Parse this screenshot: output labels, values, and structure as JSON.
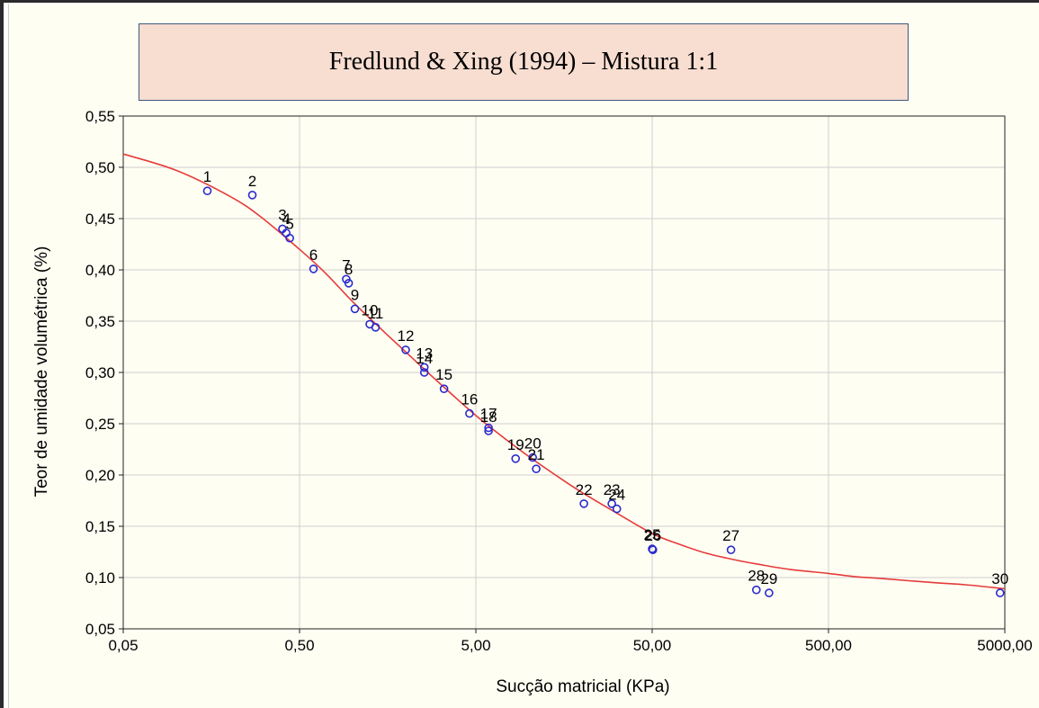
{
  "title": "Fredlund & Xing (1994) – Mistura 1:1",
  "chart_data": {
    "type": "scatter",
    "title": "Fredlund & Xing (1994) – Mistura 1:1",
    "xlabel": "Sucção matricial (KPa)",
    "ylabel": "Teor de umidade volumétrica (%)",
    "xscale": "log",
    "xlim": [
      0.05,
      5000
    ],
    "ylim": [
      0.05,
      0.55
    ],
    "xticks": [
      0.05,
      0.5,
      5,
      50,
      500,
      5000
    ],
    "xtick_labels": [
      "0,05",
      "0,50",
      "5,00",
      "50,00",
      "500,00",
      "5000,00"
    ],
    "yticks": [
      0.05,
      0.1,
      0.15,
      0.2,
      0.25,
      0.3,
      0.35,
      0.4,
      0.45,
      0.5,
      0.55
    ],
    "ytick_labels": [
      "0,05",
      "0,10",
      "0,15",
      "0,20",
      "0,25",
      "0,30",
      "0,35",
      "0,40",
      "0,45",
      "0,50",
      "0,55"
    ],
    "grid": true,
    "point_color": "#2a2ad0",
    "curve_color": "#e53b3b",
    "points": [
      {
        "label": "1",
        "x": 0.15,
        "y": 0.477
      },
      {
        "label": "2",
        "x": 0.27,
        "y": 0.473
      },
      {
        "label": "3",
        "x": 0.4,
        "y": 0.44
      },
      {
        "label": "4",
        "x": 0.42,
        "y": 0.436
      },
      {
        "label": "5",
        "x": 0.44,
        "y": 0.431
      },
      {
        "label": "6",
        "x": 0.6,
        "y": 0.401
      },
      {
        "label": "7",
        "x": 0.92,
        "y": 0.391
      },
      {
        "label": "8",
        "x": 0.95,
        "y": 0.387
      },
      {
        "label": "9",
        "x": 1.03,
        "y": 0.362
      },
      {
        "label": "10",
        "x": 1.25,
        "y": 0.347
      },
      {
        "label": "11",
        "x": 1.35,
        "y": 0.344
      },
      {
        "label": "12",
        "x": 2.0,
        "y": 0.322
      },
      {
        "label": "13",
        "x": 2.55,
        "y": 0.305
      },
      {
        "label": "14",
        "x": 2.55,
        "y": 0.3
      },
      {
        "label": "15",
        "x": 3.3,
        "y": 0.284
      },
      {
        "label": "16",
        "x": 4.6,
        "y": 0.26
      },
      {
        "label": "17",
        "x": 5.9,
        "y": 0.246
      },
      {
        "label": "18",
        "x": 5.9,
        "y": 0.243
      },
      {
        "label": "19",
        "x": 8.4,
        "y": 0.216
      },
      {
        "label": "20",
        "x": 10.5,
        "y": 0.217
      },
      {
        "label": "21",
        "x": 11.0,
        "y": 0.206
      },
      {
        "label": "22",
        "x": 20.5,
        "y": 0.172
      },
      {
        "label": "23",
        "x": 29.5,
        "y": 0.172
      },
      {
        "label": "24",
        "x": 31.5,
        "y": 0.167
      },
      {
        "label": "25",
        "x": 50.0,
        "y": 0.128
      },
      {
        "label": "26",
        "x": 50.5,
        "y": 0.127
      },
      {
        "label": "27",
        "x": 140,
        "y": 0.127
      },
      {
        "label": "28",
        "x": 195,
        "y": 0.088
      },
      {
        "label": "29",
        "x": 230,
        "y": 0.085
      },
      {
        "label": "30",
        "x": 4700,
        "y": 0.085
      }
    ],
    "fit_curve": {
      "name": "Fredlund & Xing (1994)",
      "x": [
        0.05,
        0.1,
        0.2,
        0.3,
        0.5,
        0.7,
        1,
        1.5,
        2,
        3,
        5,
        7,
        10,
        15,
        20,
        30,
        50,
        70,
        100,
        150,
        200,
        300,
        500,
        700,
        1000,
        2000,
        3000,
        5000
      ],
      "y": [
        0.513,
        0.497,
        0.472,
        0.452,
        0.42,
        0.397,
        0.369,
        0.34,
        0.32,
        0.292,
        0.258,
        0.238,
        0.218,
        0.197,
        0.183,
        0.165,
        0.143,
        0.133,
        0.124,
        0.117,
        0.113,
        0.108,
        0.104,
        0.101,
        0.099,
        0.095,
        0.093,
        0.089
      ]
    }
  }
}
